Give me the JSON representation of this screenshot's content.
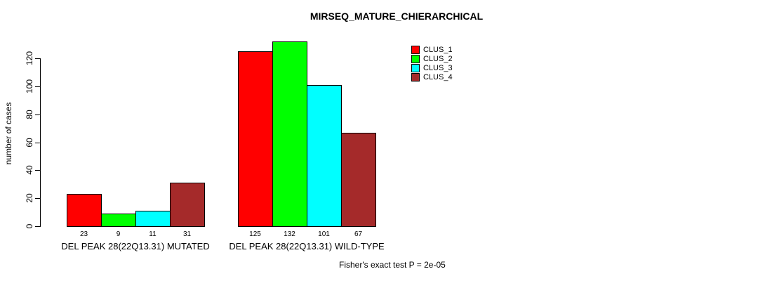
{
  "chart_data": {
    "type": "bar",
    "title": "MIRSEQ_MATURE_CHIERARCHICAL",
    "categories": [
      "DEL PEAK 28(22Q13.31) MUTATED",
      "DEL PEAK 28(22Q13.31) WILD-TYPE"
    ],
    "series": [
      {
        "name": "CLUS_1",
        "color": "#FF0000",
        "values": [
          23,
          125
        ]
      },
      {
        "name": "CLUS_2",
        "color": "#00FF00",
        "values": [
          9,
          132
        ]
      },
      {
        "name": "CLUS_3",
        "color": "#00FFFF",
        "values": [
          11,
          101
        ]
      },
      {
        "name": "CLUS_4",
        "color": "#A52A2A",
        "values": [
          31,
          67
        ]
      }
    ],
    "xlabel": "",
    "ylabel": "number of cases",
    "ylim": [
      0,
      132
    ],
    "yticks": [
      0,
      20,
      40,
      60,
      80,
      100,
      120
    ],
    "grid": false,
    "legend_position": "top-right",
    "bar_value_labels_shown": true,
    "annotation": "Fisher's exact test P = 2e-05"
  }
}
